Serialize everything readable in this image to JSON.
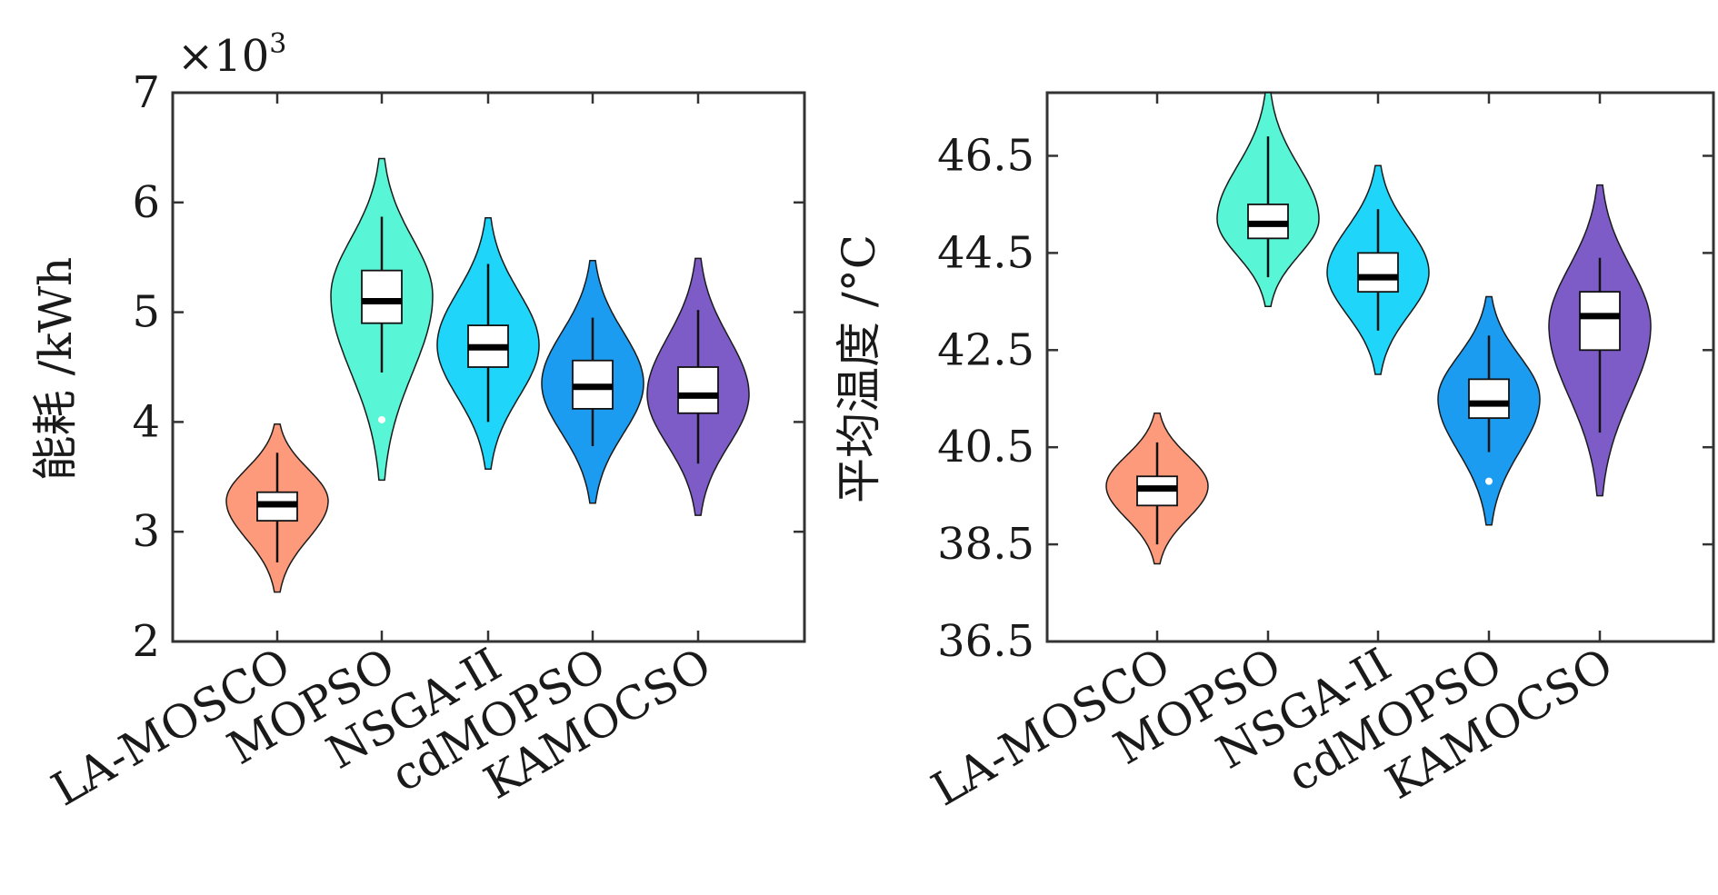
{
  "chart_data": [
    {
      "type": "violin",
      "categories": [
        "LA-MOSCO",
        "MOPSO",
        "NSGA-II",
        "cdMOPSO",
        "KAMOCSO"
      ],
      "ylabel": "能耗 /kWh",
      "exponent_label": "×10",
      "exponent_power": "3",
      "ylim": [
        2,
        7
      ],
      "yticks": [
        "2",
        "3",
        "4",
        "5",
        "6",
        "7"
      ],
      "grid": false,
      "colors": [
        "#fd9a7b",
        "#58f5d6",
        "#1fd6fa",
        "#1c9cf0",
        "#7d5cc8"
      ],
      "series": [
        {
          "name": "LA-MOSCO",
          "min": 2.45,
          "whisker_low": 2.72,
          "q1": 3.1,
          "median": 3.25,
          "q3": 3.36,
          "whisker_high": 3.72,
          "max": 3.98,
          "mode": 3.28,
          "outlier": null
        },
        {
          "name": "MOPSO",
          "min": 3.47,
          "whisker_low": 4.45,
          "q1": 4.9,
          "median": 5.1,
          "q3": 5.38,
          "whisker_high": 5.87,
          "max": 6.4,
          "mode": 5.15,
          "outlier": 4.02
        },
        {
          "name": "NSGA-II",
          "min": 3.57,
          "whisker_low": 4.0,
          "q1": 4.5,
          "median": 4.68,
          "q3": 4.88,
          "whisker_high": 5.44,
          "max": 5.86,
          "mode": 4.7,
          "outlier": null
        },
        {
          "name": "cdMOPSO",
          "min": 3.26,
          "whisker_low": 3.78,
          "q1": 4.12,
          "median": 4.32,
          "q3": 4.56,
          "whisker_high": 4.95,
          "max": 5.47,
          "mode": 4.35,
          "outlier": null
        },
        {
          "name": "KAMOCSO",
          "min": 3.15,
          "whisker_low": 3.62,
          "q1": 4.08,
          "median": 4.24,
          "q3": 4.5,
          "whisker_high": 5.02,
          "max": 5.49,
          "mode": 4.25,
          "outlier": null
        }
      ]
    },
    {
      "type": "violin",
      "categories": [
        "LA-MOSCO",
        "MOPSO",
        "NSGA-II",
        "cdMOPSO",
        "KAMOCSO"
      ],
      "ylabel": "平均温度 /°C",
      "ylim": [
        36.5,
        47.8
      ],
      "yticks": [
        "36.5",
        "38.5",
        "40.5",
        "42.5",
        "44.5",
        "46.5"
      ],
      "grid": false,
      "colors": [
        "#fd9a7b",
        "#58f5d6",
        "#1fd6fa",
        "#1c9cf0",
        "#7d5cc8"
      ],
      "series": [
        {
          "name": "LA-MOSCO",
          "min": 38.1,
          "whisker_low": 38.5,
          "q1": 39.3,
          "median": 39.65,
          "q3": 39.9,
          "whisker_high": 40.6,
          "max": 41.2,
          "mode": 39.7,
          "outlier": null
        },
        {
          "name": "MOPSO",
          "min": 43.4,
          "whisker_low": 44.0,
          "q1": 44.8,
          "median": 45.1,
          "q3": 45.5,
          "whisker_high": 46.9,
          "max": 47.8,
          "mode": 45.2,
          "outlier": null
        },
        {
          "name": "NSGA-II",
          "min": 42.0,
          "whisker_low": 42.9,
          "q1": 43.7,
          "median": 44.0,
          "q3": 44.5,
          "whisker_high": 45.4,
          "max": 46.3,
          "mode": 44.1,
          "outlier": null
        },
        {
          "name": "cdMOPSO",
          "min": 38.9,
          "whisker_low": 40.4,
          "q1": 41.1,
          "median": 41.4,
          "q3": 41.9,
          "whisker_high": 42.8,
          "max": 43.6,
          "mode": 41.5,
          "outlier": 39.8
        },
        {
          "name": "KAMOCSO",
          "min": 39.5,
          "whisker_low": 40.8,
          "q1": 42.5,
          "median": 43.2,
          "q3": 43.7,
          "whisker_high": 44.4,
          "max": 45.9,
          "mode": 43.0,
          "outlier": null
        }
      ]
    }
  ]
}
